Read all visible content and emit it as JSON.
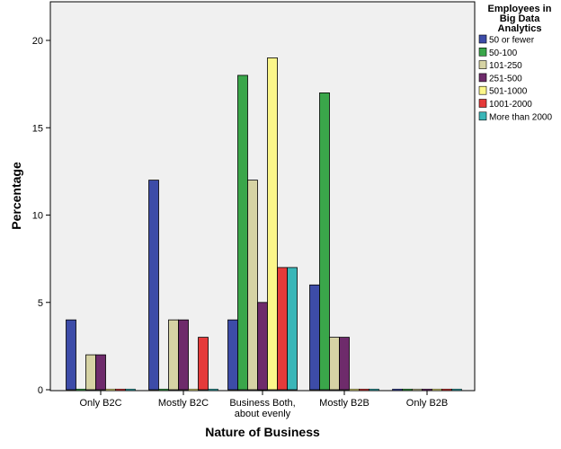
{
  "chart_data": {
    "type": "bar",
    "xlabel": "Nature of Business",
    "ylabel": "Percentage",
    "ylim": [
      0,
      22
    ],
    "yticks": [
      0,
      5,
      10,
      15,
      20
    ],
    "grid": false,
    "legend_position": "top-right",
    "legend_title": [
      "Employees in",
      "Big Data",
      "Analytics"
    ],
    "categories": [
      [
        "Only B2C"
      ],
      [
        "Mostly B2C"
      ],
      [
        "Business Both,",
        "about evenly"
      ],
      [
        "Mostly B2B"
      ],
      [
        "Only B2B"
      ]
    ],
    "series": [
      {
        "name": "50 or fewer",
        "color": "#3d4ca8",
        "values": [
          4,
          12,
          4,
          6,
          0
        ]
      },
      {
        "name": "50-100",
        "color": "#3aa64a",
        "values": [
          0,
          0,
          18,
          17,
          0
        ]
      },
      {
        "name": "101-250",
        "color": "#d6d3a4",
        "values": [
          2,
          4,
          12,
          3,
          0
        ]
      },
      {
        "name": "251-500",
        "color": "#6e2b6b",
        "values": [
          2,
          4,
          5,
          3,
          0
        ]
      },
      {
        "name": "501-1000",
        "color": "#fbf68a",
        "values": [
          0,
          0,
          19,
          0,
          0
        ]
      },
      {
        "name": "1001-2000",
        "color": "#e53a3a",
        "values": [
          0,
          3,
          7,
          0,
          0
        ]
      },
      {
        "name": "More than 2000",
        "color": "#3ab6b8",
        "values": [
          0,
          0,
          7,
          0,
          0
        ]
      }
    ]
  }
}
